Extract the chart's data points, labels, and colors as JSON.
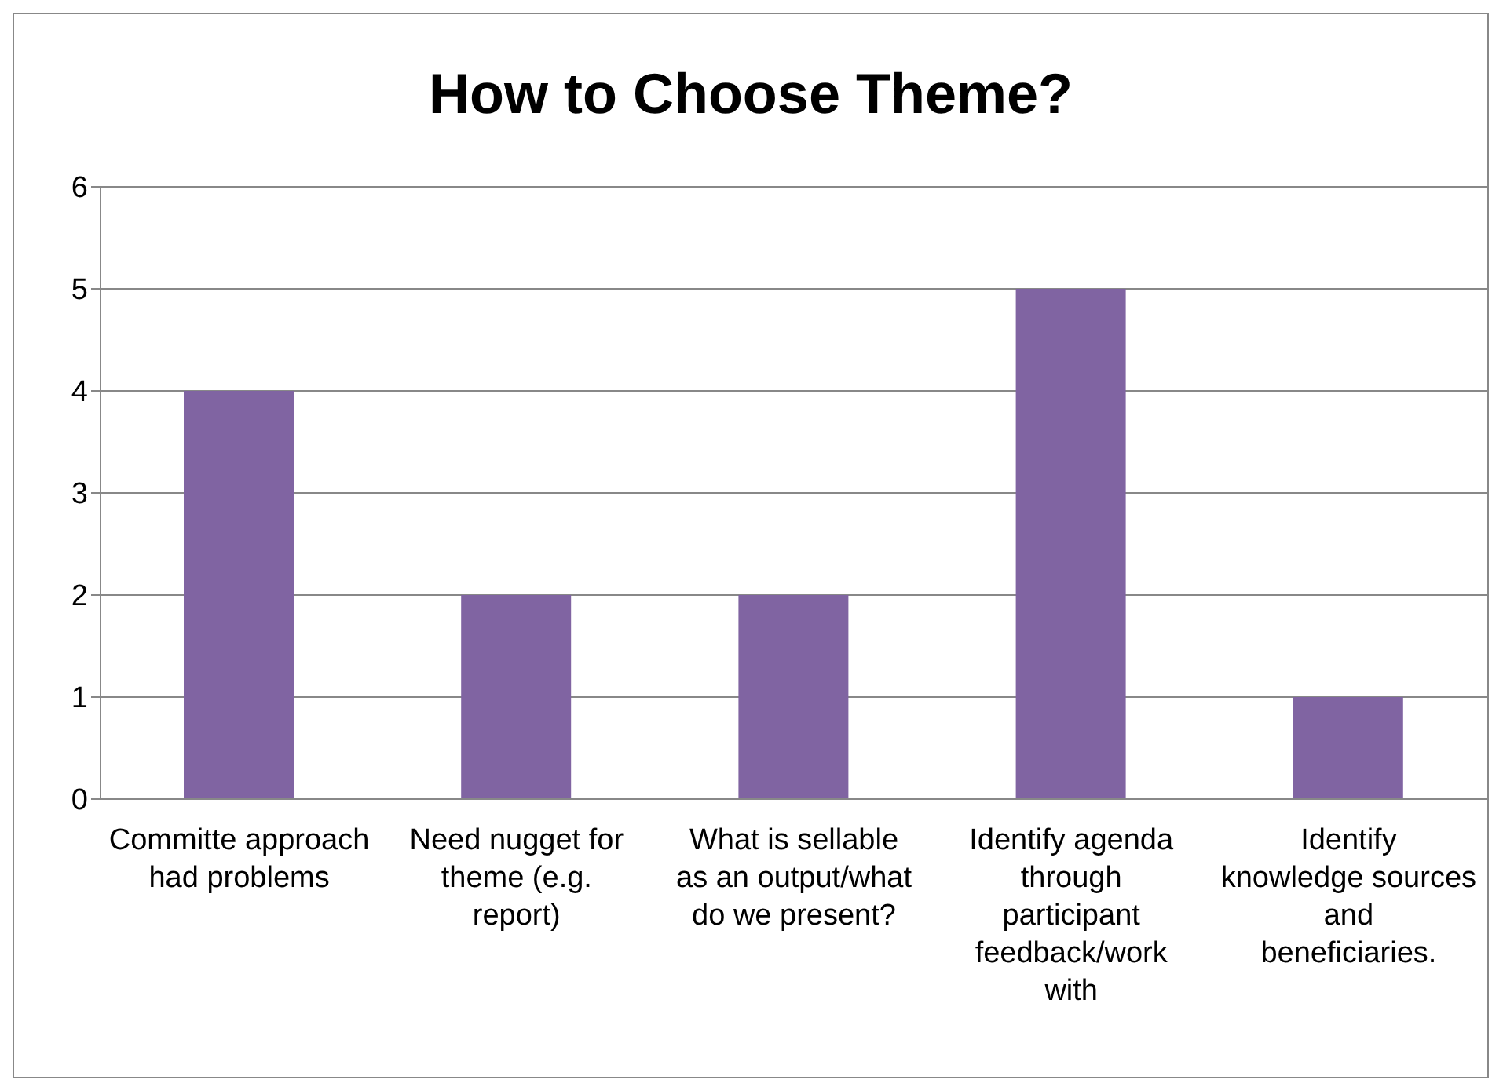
{
  "chart_data": {
    "type": "bar",
    "title": "How to Choose Theme?",
    "categories": [
      "Committe approach had problems",
      "Need nugget for theme (e.g. report)",
      "What is sellable as an output/what do we present?",
      "Identify agenda through participant feedback/work with",
      "Identify knowledge sources and beneficiaries."
    ],
    "values": [
      4,
      2,
      2,
      5,
      1
    ],
    "color": "#8064a2",
    "ylim": [
      0,
      6
    ],
    "yticks": [
      0,
      1,
      2,
      3,
      4,
      5,
      6
    ],
    "grid": "y"
  }
}
